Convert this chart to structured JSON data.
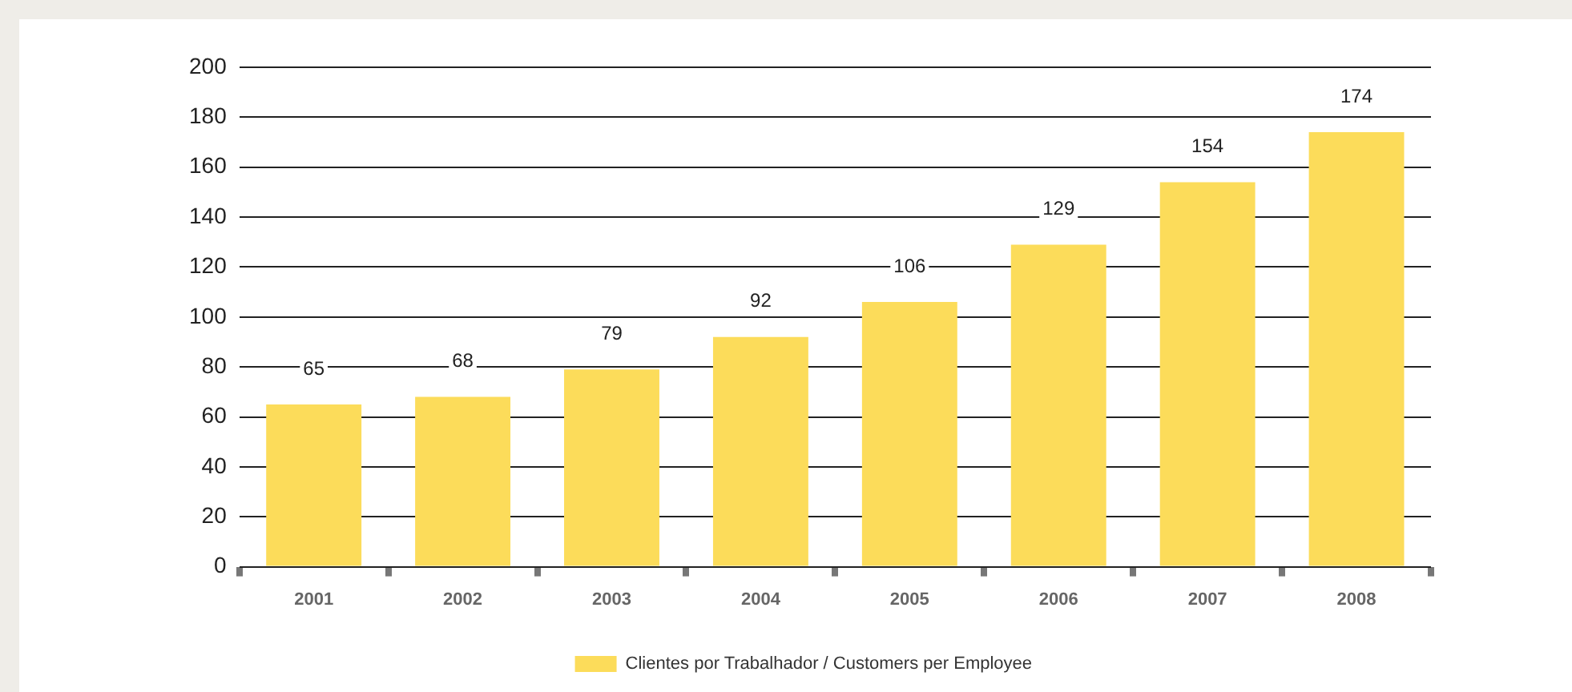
{
  "chart_data": {
    "type": "bar",
    "categories": [
      "2001",
      "2002",
      "2003",
      "2004",
      "2005",
      "2006",
      "2007",
      "2008"
    ],
    "series": [
      {
        "name": "Clientes por Trabalhador / Customers per Employee",
        "color": "#fcdc5a",
        "values": [
          65,
          68,
          79,
          92,
          106,
          129,
          154,
          174
        ]
      }
    ],
    "ylim": [
      0,
      200
    ],
    "yticks": [
      0,
      20,
      40,
      60,
      80,
      100,
      120,
      140,
      160,
      180,
      200
    ],
    "grid": "y",
    "legend": "bottom",
    "data_labels": true
  }
}
